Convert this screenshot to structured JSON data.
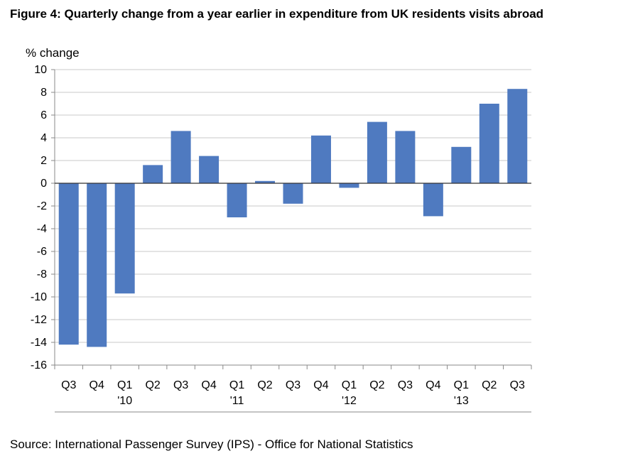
{
  "figure": {
    "title": "Figure 4: Quarterly change from a year earlier in expenditure from UK residents visits abroad",
    "source": "Source: International Passenger Survey (IPS) - Office for National Statistics"
  },
  "chart_data": {
    "type": "bar",
    "title": "Figure 4: Quarterly change from a year earlier in expenditure from UK residents visits abroad",
    "xlabel": "",
    "ylabel": "% change",
    "ylim": [
      -16,
      10
    ],
    "yticks": [
      10,
      8,
      6,
      4,
      2,
      0,
      -2,
      -4,
      -6,
      -8,
      -10,
      -12,
      -14,
      -16
    ],
    "grid": true,
    "legend": "none",
    "bar_color": "#4f7ac0",
    "categories": [
      "Q3",
      "Q4",
      "Q1",
      "Q2",
      "Q3",
      "Q4",
      "Q1",
      "Q2",
      "Q3",
      "Q4",
      "Q1",
      "Q2",
      "Q3",
      "Q4",
      "Q1",
      "Q2",
      "Q3"
    ],
    "year_labels": [
      "",
      "",
      "'10",
      "",
      "",
      "",
      "'11",
      "",
      "",
      "",
      "'12",
      "",
      "",
      "",
      "'13",
      "",
      ""
    ],
    "values": [
      -14.2,
      -14.4,
      -9.7,
      1.6,
      4.6,
      2.4,
      -3.0,
      0.2,
      -1.8,
      4.2,
      -0.4,
      5.4,
      4.6,
      -2.9,
      3.2,
      7.0,
      8.3
    ]
  }
}
